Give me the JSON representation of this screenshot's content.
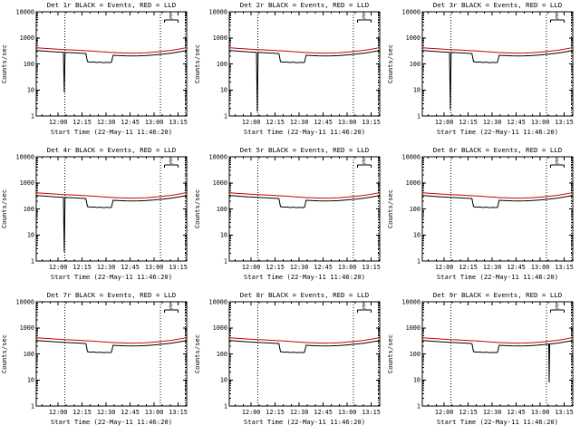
{
  "page": {
    "background": "#ffffff"
  },
  "chart_data": {
    "type": "line",
    "layout": {
      "rows": 3,
      "cols": 3,
      "legend": "encoded in titles: BLACK = Events, RED = LLD"
    },
    "xlabel": "Start Time (22-May-11 11:46:20)",
    "ylabel": "Counts/sec",
    "x_range_minutes": [
      0,
      94
    ],
    "ylim": [
      1,
      10000
    ],
    "yticks": [
      1,
      10,
      100,
      1000,
      10000
    ],
    "xticks": [
      {
        "minute": 13.67,
        "label": "12:00"
      },
      {
        "minute": 28.67,
        "label": "12:15"
      },
      {
        "minute": 43.67,
        "label": "12:30"
      },
      {
        "minute": 58.67,
        "label": "12:45"
      },
      {
        "minute": 73.67,
        "label": "13:00"
      },
      {
        "minute": 88.67,
        "label": "13:15"
      }
    ],
    "xminor_start": 3.67,
    "xminor_step": 5,
    "dotted_lines_minutes": [
      17.7,
      77.7,
      93.2
    ],
    "event_marker": {
      "label": "E",
      "x_start_minute": 80,
      "x_end_minute": 88.5,
      "y_frac": 0.08
    },
    "series_colors": {
      "events": "#000000",
      "lld": "#cc0000"
    },
    "x_minutes": [
      0,
      4,
      8,
      12,
      16,
      17,
      17.5,
      18,
      20,
      24,
      28,
      31,
      32,
      34,
      36,
      38,
      40,
      42,
      44,
      46,
      47,
      48,
      52,
      56,
      60,
      64,
      68,
      72,
      76,
      78,
      79,
      79.3,
      79.6,
      80,
      84,
      88,
      92,
      94
    ],
    "lld_values": [
      420,
      400,
      385,
      370,
      358,
      355,
      354,
      353,
      348,
      338,
      328,
      320,
      318,
      312,
      306,
      300,
      294,
      288,
      282,
      277,
      275,
      273,
      266,
      261,
      259,
      261,
      267,
      278,
      293,
      301,
      305,
      306,
      307,
      309,
      330,
      360,
      400,
      420
    ],
    "panels": [
      {
        "det": "1r",
        "title": "Det 1r BLACK = Events, RED = LLD",
        "events_values": [
          330,
          314,
          301,
          289,
          281,
          278,
          8,
          276,
          271,
          263,
          255,
          249,
          122,
          116,
          119,
          113,
          117,
          111,
          115,
          112,
          116,
          214,
          208,
          203,
          201,
          203,
          208,
          217,
          228,
          234,
          237,
          238,
          239,
          241,
          257,
          280,
          311,
          327
        ]
      },
      {
        "det": "2r",
        "title": "Det 2r BLACK = Events, RED = LLD",
        "events_values": [
          330,
          314,
          301,
          289,
          281,
          278,
          1.5,
          276,
          271,
          263,
          255,
          249,
          122,
          116,
          119,
          113,
          117,
          111,
          115,
          112,
          116,
          214,
          208,
          203,
          201,
          203,
          208,
          217,
          228,
          234,
          237,
          238,
          239,
          241,
          257,
          280,
          311,
          327
        ]
      },
      {
        "det": "3r",
        "title": "Det 3r BLACK = Events, RED = LLD",
        "events_values": [
          330,
          314,
          301,
          289,
          281,
          278,
          1.8,
          276,
          271,
          263,
          255,
          249,
          122,
          116,
          119,
          113,
          117,
          111,
          115,
          112,
          116,
          214,
          208,
          203,
          201,
          203,
          208,
          217,
          228,
          234,
          237,
          238,
          239,
          241,
          257,
          280,
          311,
          327
        ]
      },
      {
        "det": "4r",
        "title": "Det 4r BLACK = Events, RED = LLD",
        "events_values": [
          330,
          314,
          301,
          289,
          281,
          278,
          2.2,
          276,
          271,
          263,
          255,
          249,
          122,
          116,
          119,
          113,
          117,
          111,
          115,
          112,
          116,
          214,
          208,
          203,
          201,
          203,
          208,
          217,
          228,
          234,
          237,
          238,
          239,
          241,
          257,
          280,
          311,
          327
        ]
      },
      {
        "det": "5r",
        "title": "Det 5r BLACK = Events, RED = LLD",
        "events_values": [
          330,
          314,
          301,
          289,
          281,
          278,
          277,
          276,
          271,
          263,
          255,
          249,
          122,
          116,
          119,
          113,
          117,
          111,
          115,
          112,
          116,
          214,
          208,
          203,
          201,
          203,
          208,
          217,
          228,
          234,
          237,
          238,
          239,
          241,
          257,
          280,
          311,
          327
        ]
      },
      {
        "det": "6r",
        "title": "Det 6r BLACK = Events, RED = LLD",
        "events_values": [
          330,
          314,
          301,
          289,
          281,
          278,
          277,
          276,
          271,
          263,
          255,
          249,
          122,
          116,
          119,
          113,
          117,
          111,
          115,
          112,
          116,
          214,
          208,
          203,
          201,
          203,
          208,
          217,
          228,
          234,
          237,
          238,
          239,
          241,
          257,
          280,
          311,
          327
        ]
      },
      {
        "det": "7r",
        "title": "Det 7r BLACK = Events, RED = LLD",
        "events_values": [
          330,
          314,
          301,
          289,
          281,
          278,
          277,
          276,
          271,
          263,
          255,
          249,
          122,
          116,
          119,
          113,
          117,
          111,
          115,
          112,
          116,
          214,
          208,
          203,
          201,
          203,
          208,
          217,
          228,
          234,
          237,
          238,
          239,
          241,
          257,
          280,
          311,
          327
        ]
      },
      {
        "det": "8r",
        "title": "Det 8r BLACK = Events, RED = LLD",
        "events_values": [
          330,
          314,
          301,
          289,
          281,
          278,
          277,
          276,
          271,
          263,
          255,
          249,
          122,
          116,
          119,
          113,
          117,
          111,
          115,
          112,
          116,
          214,
          208,
          203,
          201,
          203,
          208,
          217,
          228,
          234,
          237,
          238,
          239,
          241,
          257,
          280,
          311,
          327
        ]
      },
      {
        "det": "9r",
        "title": "Det 9r BLACK = Events, RED = LLD",
        "events_values": [
          330,
          314,
          301,
          289,
          281,
          278,
          277,
          276,
          271,
          263,
          255,
          249,
          122,
          116,
          119,
          113,
          117,
          111,
          115,
          112,
          116,
          214,
          208,
          203,
          201,
          203,
          208,
          217,
          228,
          234,
          237,
          8,
          239,
          241,
          257,
          280,
          311,
          327
        ]
      }
    ]
  }
}
